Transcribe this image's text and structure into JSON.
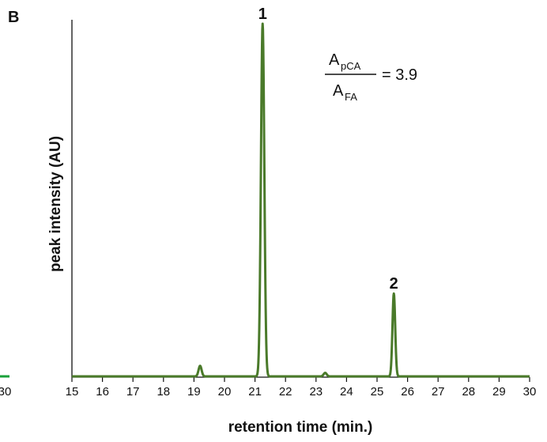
{
  "chart_data": {
    "type": "line",
    "panel_label": "B",
    "xlabel": "retention time (min.)",
    "ylabel": "peak intensity (AU)",
    "xlim": [
      15,
      30
    ],
    "ylim": [
      0,
      1.0
    ],
    "x_ticks": [
      "15",
      "16",
      "17",
      "18",
      "19",
      "20",
      "21",
      "22",
      "23",
      "24",
      "25",
      "26",
      "27",
      "28",
      "29",
      "30"
    ],
    "left_cut_tick": "30",
    "series_color": "#4a7a2a",
    "left_cut_color": "#1aa03a",
    "peaks": [
      {
        "center": 19.2,
        "height": 0.03,
        "width": 0.05
      },
      {
        "center": 21.25,
        "height": 1.0,
        "width": 0.055
      },
      {
        "center": 23.3,
        "height": 0.01,
        "width": 0.05
      },
      {
        "center": 25.55,
        "height": 0.235,
        "width": 0.045
      }
    ],
    "peak_annotations": [
      {
        "text": "1",
        "x": 21.25
      },
      {
        "text": "2",
        "x": 25.55
      }
    ],
    "ratio_equation": {
      "numerator_main": "A",
      "numerator_sub": "pCA",
      "denominator_main": "A",
      "denominator_sub": "FA",
      "rhs": "= 3.9"
    }
  }
}
